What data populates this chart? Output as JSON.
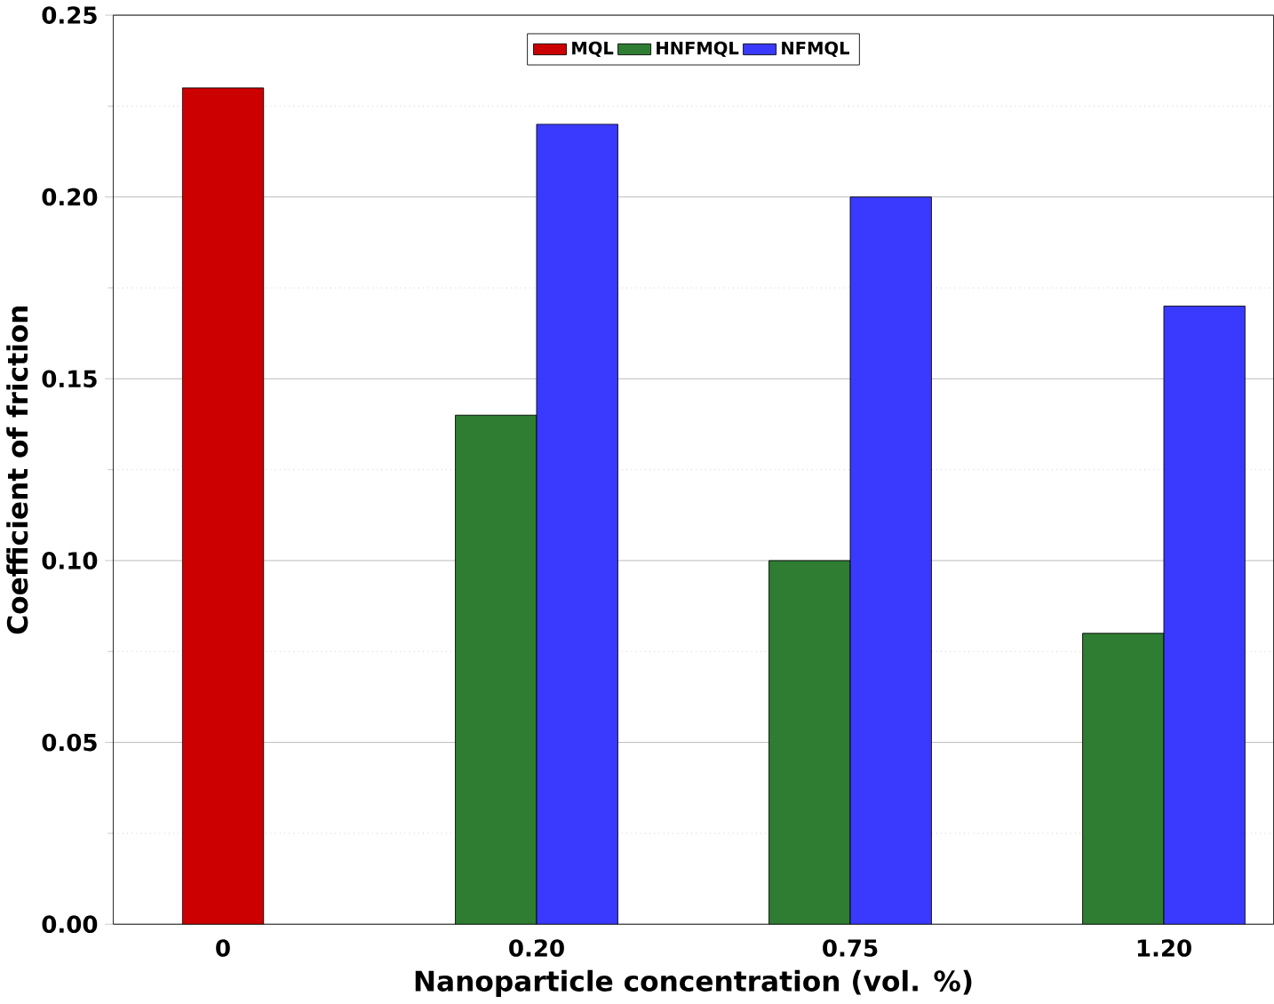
{
  "chart_data": {
    "type": "bar",
    "xlabel": "Nanoparticle concentration (vol. %)",
    "ylabel": "Coefficient of friction",
    "categories": [
      "0",
      "0.20",
      "0.75",
      "1.20"
    ],
    "series": [
      {
        "name": "MQL",
        "color": "#cc0000",
        "values": [
          0.23,
          null,
          null,
          null
        ]
      },
      {
        "name": "HNFMQL",
        "color": "#2e7d32",
        "values": [
          null,
          0.14,
          0.1,
          0.08
        ]
      },
      {
        "name": "NFMQL",
        "color": "#3a3aff",
        "values": [
          null,
          0.22,
          0.2,
          0.17
        ]
      }
    ],
    "ylim": [
      0,
      0.25
    ],
    "yticks": [
      {
        "value": 0,
        "label": "0.00"
      },
      {
        "value": 0.05,
        "label": "0.05"
      },
      {
        "value": 0.1,
        "label": "0.10"
      },
      {
        "value": 0.15,
        "label": "0.15"
      },
      {
        "value": 0.2,
        "label": "0.20"
      },
      {
        "value": 0.25,
        "label": "0.25"
      }
    ],
    "grid": true,
    "legend": "top"
  }
}
